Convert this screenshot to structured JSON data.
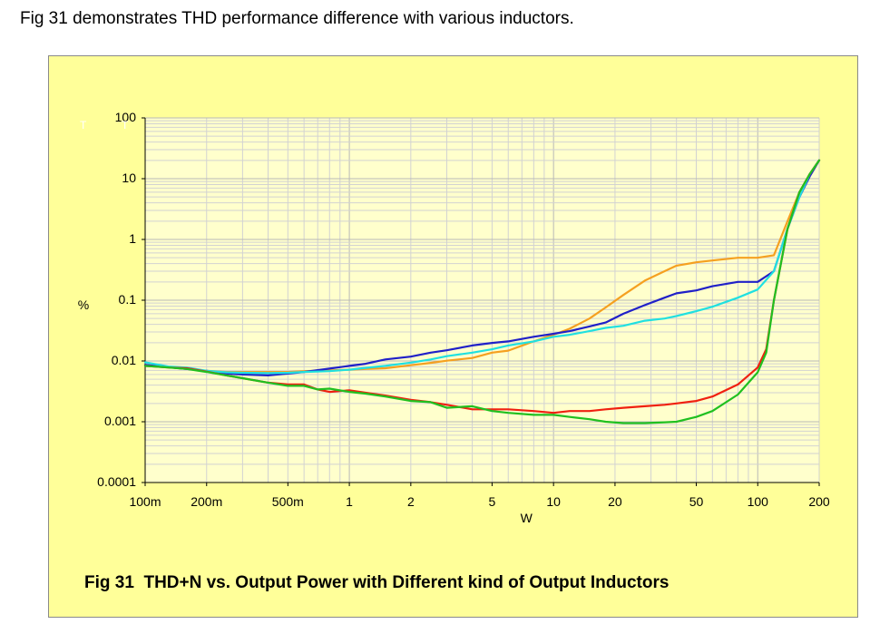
{
  "header": {
    "intro_text": "Fig 31 demonstrates THD performance difference with various inductors."
  },
  "caption": "Fig 31  THD+N vs. Output Power with Different kind of Output Inductors",
  "chart_data": {
    "type": "line",
    "title": "",
    "xlabel": "W",
    "ylabel": "%",
    "xscale": "log",
    "yscale": "log",
    "xlim": [
      0.1,
      200
    ],
    "ylim": [
      0.0001,
      100
    ],
    "grid": true,
    "legend": "none",
    "x_ticks": [
      {
        "value": 0.1,
        "label": "100m"
      },
      {
        "value": 0.2,
        "label": "200m"
      },
      {
        "value": 0.5,
        "label": "500m"
      },
      {
        "value": 1,
        "label": "1"
      },
      {
        "value": 2,
        "label": "2"
      },
      {
        "value": 5,
        "label": "5"
      },
      {
        "value": 10,
        "label": "10"
      },
      {
        "value": 20,
        "label": "20"
      },
      {
        "value": 50,
        "label": "50"
      },
      {
        "value": 100,
        "label": "100"
      },
      {
        "value": 200,
        "label": "200"
      }
    ],
    "y_ticks": [
      {
        "value": 100,
        "label": "100"
      },
      {
        "value": 10,
        "label": "10"
      },
      {
        "value": 1,
        "label": "1"
      },
      {
        "value": 0.1,
        "label": "0.1"
      },
      {
        "value": 0.01,
        "label": "0.01"
      },
      {
        "value": 0.001,
        "label": "0.001"
      },
      {
        "value": 0.0001,
        "label": "0.0001"
      }
    ],
    "ghost_marks": [
      "T",
      "T"
    ],
    "series": [
      {
        "color": "#f5a020",
        "points": [
          [
            0.1,
            0.0086
          ],
          [
            0.13,
            0.0079
          ],
          [
            0.16,
            0.0074
          ],
          [
            0.2,
            0.0069
          ],
          [
            0.25,
            0.0066
          ],
          [
            0.3,
            0.0066
          ],
          [
            0.4,
            0.0066
          ],
          [
            0.5,
            0.0066
          ],
          [
            0.6,
            0.0068
          ],
          [
            0.8,
            0.007
          ],
          [
            1,
            0.0072
          ],
          [
            1.2,
            0.0074
          ],
          [
            1.5,
            0.0076
          ],
          [
            2,
            0.0085
          ],
          [
            2.5,
            0.0093
          ],
          [
            3,
            0.0101
          ],
          [
            4,
            0.0112
          ],
          [
            5,
            0.0137
          ],
          [
            6,
            0.0148
          ],
          [
            8,
            0.021
          ],
          [
            10,
            0.027
          ],
          [
            12,
            0.034
          ],
          [
            15,
            0.05
          ],
          [
            18,
            0.076
          ],
          [
            22,
            0.122
          ],
          [
            28,
            0.21
          ],
          [
            35,
            0.3
          ],
          [
            40,
            0.37
          ],
          [
            50,
            0.42
          ],
          [
            60,
            0.45
          ],
          [
            80,
            0.5
          ],
          [
            100,
            0.5
          ],
          [
            120,
            0.55
          ],
          [
            140,
            2
          ],
          [
            160,
            6
          ],
          [
            180,
            12
          ],
          [
            200,
            20
          ]
        ]
      },
      {
        "color": "#2020c8",
        "points": [
          [
            0.1,
            0.0086
          ],
          [
            0.13,
            0.0079
          ],
          [
            0.16,
            0.0074
          ],
          [
            0.2,
            0.0069
          ],
          [
            0.25,
            0.0062
          ],
          [
            0.3,
            0.006
          ],
          [
            0.4,
            0.0058
          ],
          [
            0.5,
            0.0062
          ],
          [
            0.6,
            0.0066
          ],
          [
            0.8,
            0.0075
          ],
          [
            1,
            0.0083
          ],
          [
            1.2,
            0.009
          ],
          [
            1.5,
            0.0106
          ],
          [
            2,
            0.0118
          ],
          [
            2.5,
            0.0137
          ],
          [
            3,
            0.015
          ],
          [
            4,
            0.018
          ],
          [
            5,
            0.0198
          ],
          [
            6,
            0.021
          ],
          [
            8,
            0.025
          ],
          [
            10,
            0.028
          ],
          [
            12,
            0.031
          ],
          [
            15,
            0.037
          ],
          [
            18,
            0.043
          ],
          [
            22,
            0.06
          ],
          [
            28,
            0.083
          ],
          [
            35,
            0.11
          ],
          [
            40,
            0.13
          ],
          [
            50,
            0.145
          ],
          [
            60,
            0.17
          ],
          [
            80,
            0.2
          ],
          [
            100,
            0.2
          ],
          [
            120,
            0.3
          ],
          [
            140,
            1.5
          ],
          [
            160,
            5
          ],
          [
            180,
            11
          ],
          [
            200,
            20
          ]
        ]
      },
      {
        "color": "#20e0e0",
        "points": [
          [
            0.1,
            0.0095
          ],
          [
            0.13,
            0.0081
          ],
          [
            0.16,
            0.0078
          ],
          [
            0.2,
            0.0069
          ],
          [
            0.25,
            0.0065
          ],
          [
            0.3,
            0.0064
          ],
          [
            0.4,
            0.0063
          ],
          [
            0.5,
            0.0064
          ],
          [
            0.6,
            0.0066
          ],
          [
            0.8,
            0.0068
          ],
          [
            1,
            0.0072
          ],
          [
            1.2,
            0.0077
          ],
          [
            1.5,
            0.0083
          ],
          [
            2,
            0.0094
          ],
          [
            2.5,
            0.0106
          ],
          [
            3,
            0.012
          ],
          [
            4,
            0.0137
          ],
          [
            5,
            0.0156
          ],
          [
            6,
            0.018
          ],
          [
            8,
            0.021
          ],
          [
            10,
            0.025
          ],
          [
            12,
            0.027
          ],
          [
            15,
            0.031
          ],
          [
            18,
            0.035
          ],
          [
            22,
            0.038
          ],
          [
            28,
            0.046
          ],
          [
            35,
            0.05
          ],
          [
            40,
            0.055
          ],
          [
            50,
            0.066
          ],
          [
            60,
            0.078
          ],
          [
            80,
            0.11
          ],
          [
            100,
            0.15
          ],
          [
            120,
            0.3
          ],
          [
            140,
            1.5
          ],
          [
            160,
            5
          ],
          [
            180,
            12
          ],
          [
            200,
            20
          ]
        ]
      },
      {
        "color": "#f02010",
        "points": [
          [
            0.1,
            0.0083
          ],
          [
            0.13,
            0.0078
          ],
          [
            0.16,
            0.0076
          ],
          [
            0.2,
            0.0067
          ],
          [
            0.25,
            0.0058
          ],
          [
            0.3,
            0.0052
          ],
          [
            0.4,
            0.0044
          ],
          [
            0.5,
            0.0041
          ],
          [
            0.6,
            0.0041
          ],
          [
            0.7,
            0.0034
          ],
          [
            0.8,
            0.0031
          ],
          [
            1,
            0.0033
          ],
          [
            1.2,
            0.003
          ],
          [
            1.5,
            0.0027
          ],
          [
            2,
            0.0023
          ],
          [
            2.5,
            0.0021
          ],
          [
            3,
            0.0019
          ],
          [
            4,
            0.0016
          ],
          [
            5,
            0.0016
          ],
          [
            6,
            0.0016
          ],
          [
            8,
            0.0015
          ],
          [
            10,
            0.0014
          ],
          [
            12,
            0.0015
          ],
          [
            15,
            0.0015
          ],
          [
            18,
            0.0016
          ],
          [
            22,
            0.0017
          ],
          [
            28,
            0.0018
          ],
          [
            35,
            0.0019
          ],
          [
            40,
            0.002
          ],
          [
            50,
            0.0022
          ],
          [
            60,
            0.0026
          ],
          [
            80,
            0.0041
          ],
          [
            100,
            0.0078
          ],
          [
            110,
            0.0156
          ],
          [
            120,
            0.1
          ],
          [
            140,
            1.5
          ],
          [
            160,
            6
          ],
          [
            180,
            12
          ],
          [
            200,
            20
          ]
        ]
      },
      {
        "color": "#20c020",
        "points": [
          [
            0.1,
            0.0083
          ],
          [
            0.13,
            0.0078
          ],
          [
            0.16,
            0.0074
          ],
          [
            0.2,
            0.0066
          ],
          [
            0.25,
            0.0058
          ],
          [
            0.3,
            0.0052
          ],
          [
            0.4,
            0.0044
          ],
          [
            0.5,
            0.0039
          ],
          [
            0.6,
            0.0039
          ],
          [
            0.7,
            0.0034
          ],
          [
            0.8,
            0.0035
          ],
          [
            1,
            0.0031
          ],
          [
            1.2,
            0.0029
          ],
          [
            1.5,
            0.0026
          ],
          [
            2,
            0.0022
          ],
          [
            2.5,
            0.0021
          ],
          [
            3,
            0.0017
          ],
          [
            4,
            0.0018
          ],
          [
            5,
            0.0015
          ],
          [
            6,
            0.0014
          ],
          [
            8,
            0.0013
          ],
          [
            10,
            0.0013
          ],
          [
            12,
            0.0012
          ],
          [
            15,
            0.0011
          ],
          [
            18,
            0.001
          ],
          [
            22,
            0.00095
          ],
          [
            28,
            0.00095
          ],
          [
            35,
            0.00098
          ],
          [
            40,
            0.001
          ],
          [
            50,
            0.0012
          ],
          [
            60,
            0.0015
          ],
          [
            80,
            0.0028
          ],
          [
            100,
            0.0065
          ],
          [
            110,
            0.0137
          ],
          [
            120,
            0.1
          ],
          [
            140,
            1.5
          ],
          [
            160,
            6
          ],
          [
            180,
            12
          ],
          [
            200,
            20
          ]
        ]
      }
    ]
  }
}
